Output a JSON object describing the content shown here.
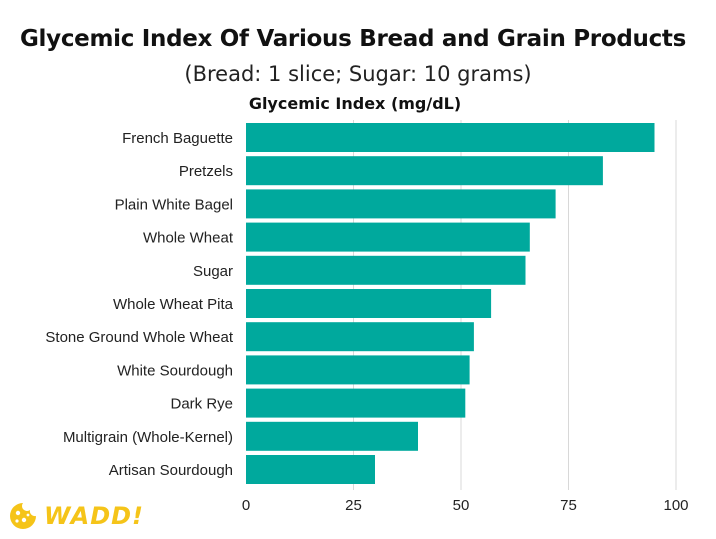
{
  "chart_data": {
    "type": "bar",
    "orientation": "horizontal",
    "title": "Glycemic Index Of Various Bread and Grain Products",
    "subtitle": "(Bread: 1 slice; Sugar: 10 grams)",
    "xlabel": "Glycemic Index (mg/dL)",
    "ylabel": "",
    "categories": [
      "French Baguette",
      "Pretzels",
      "Plain White Bagel",
      "Whole Wheat",
      "Sugar",
      "Whole Wheat Pita",
      "Stone Ground Whole Wheat",
      "White Sourdough",
      "Dark Rye",
      "Multigrain (Whole-Kernel)",
      "Artisan Sourdough"
    ],
    "values": [
      95,
      83,
      72,
      66,
      65,
      57,
      53,
      52,
      51,
      40,
      30
    ],
    "xlim": [
      0,
      100
    ],
    "xticks": [
      "0",
      "25",
      "50",
      "75",
      "100"
    ],
    "grid": true,
    "bar_color": "#00a99d",
    "grid_color": "#d8d8d8"
  },
  "logo": {
    "text": "WADD!",
    "color": "#f5c419"
  }
}
